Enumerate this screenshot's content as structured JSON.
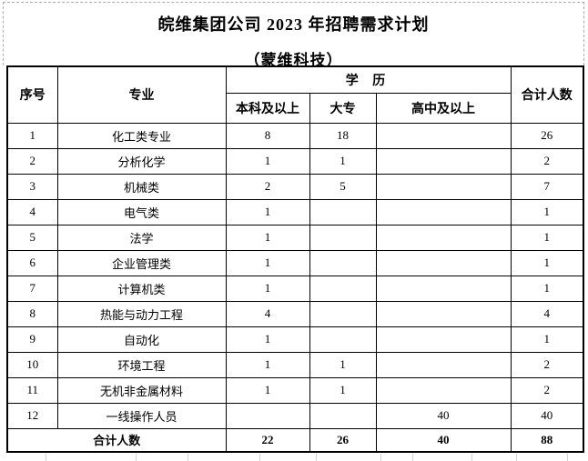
{
  "title": {
    "line1": "皖维集团公司 2023 年招聘需求计划",
    "line2": "（蒙维科技）"
  },
  "table": {
    "headers": {
      "col_no": "序号",
      "col_major": "专业",
      "col_education": "学 历",
      "col_bachelor": "本科及以上",
      "col_college": "大专",
      "col_highschool": "高中及以上",
      "col_total": "合计人数"
    },
    "rows": [
      {
        "no": "1",
        "major": "化工类专业",
        "bachelor": "8",
        "college": "18",
        "highschool": "",
        "total": "26"
      },
      {
        "no": "2",
        "major": "分析化学",
        "bachelor": "1",
        "college": "1",
        "highschool": "",
        "total": "2"
      },
      {
        "no": "3",
        "major": "机械类",
        "bachelor": "2",
        "college": "5",
        "highschool": "",
        "total": "7"
      },
      {
        "no": "4",
        "major": "电气类",
        "bachelor": "1",
        "college": "",
        "highschool": "",
        "total": "1"
      },
      {
        "no": "5",
        "major": "法学",
        "bachelor": "1",
        "college": "",
        "highschool": "",
        "total": "1"
      },
      {
        "no": "6",
        "major": "企业管理类",
        "bachelor": "1",
        "college": "",
        "highschool": "",
        "total": "1"
      },
      {
        "no": "7",
        "major": "计算机类",
        "bachelor": "1",
        "college": "",
        "highschool": "",
        "total": "1"
      },
      {
        "no": "8",
        "major": "热能与动力工程",
        "bachelor": "4",
        "college": "",
        "highschool": "",
        "total": "4"
      },
      {
        "no": "9",
        "major": "自动化",
        "bachelor": "1",
        "college": "",
        "highschool": "",
        "total": "1"
      },
      {
        "no": "10",
        "major": "环境工程",
        "bachelor": "1",
        "college": "1",
        "highschool": "",
        "total": "2"
      },
      {
        "no": "11",
        "major": "无机非金属材料",
        "bachelor": "1",
        "college": "1",
        "highschool": "",
        "total": "2"
      },
      {
        "no": "12",
        "major": "一线操作人员",
        "bachelor": "",
        "college": "",
        "highschool": "40",
        "total": "40"
      }
    ],
    "total_row": {
      "label": "合计人数",
      "bachelor": "22",
      "college": "26",
      "highschool": "40",
      "total": "88"
    }
  },
  "colors": {
    "border": "#000000",
    "dashed_print_border": "#ababab",
    "faint_gridline": "#d4d4d4",
    "text": "#000000",
    "background": "#ffffff"
  }
}
